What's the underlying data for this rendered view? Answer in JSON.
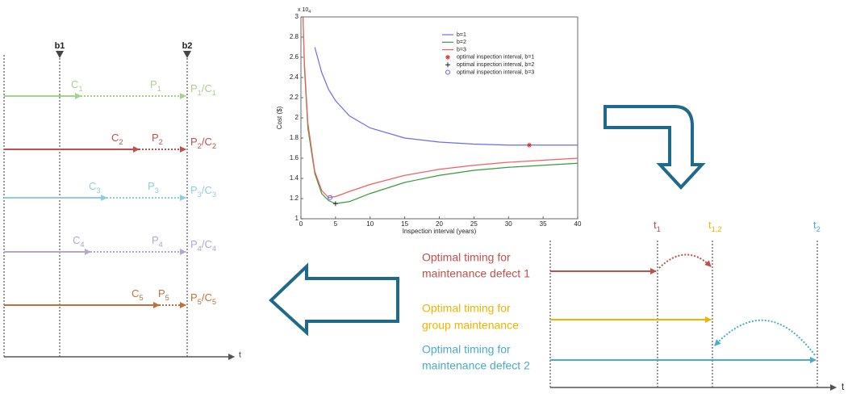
{
  "left": {
    "markers": [
      "b1",
      "b2"
    ],
    "rows": [
      {
        "color": "#a9d18e",
        "c": [
          "C",
          "1"
        ],
        "p": [
          "P",
          "1"
        ],
        "pc": [
          "P",
          "1",
          "/C",
          "1"
        ]
      },
      {
        "color": "#c0504d",
        "c": [
          "C",
          "2"
        ],
        "p": [
          "P",
          "2"
        ],
        "pc": [
          "P",
          "2",
          "/C",
          "2"
        ]
      },
      {
        "color": "#92cddc",
        "c": [
          "C",
          "3"
        ],
        "p": [
          "P",
          "3"
        ],
        "pc": [
          "P",
          "3",
          "/C",
          "3"
        ]
      },
      {
        "color": "#b4a7d6",
        "c": [
          "C",
          "4"
        ],
        "p": [
          "P",
          "4"
        ],
        "pc": [
          "P",
          "4",
          "/C",
          "4"
        ]
      },
      {
        "color": "#c0703a",
        "c": [
          "C",
          "5"
        ],
        "p": [
          "P",
          "5"
        ],
        "pc": [
          "P",
          "5",
          "/C",
          "5"
        ]
      }
    ],
    "axis_label": "t"
  },
  "chart_data": {
    "type": "line",
    "xlabel": "Inspection interval (years)",
    "ylabel": "Cost ($)",
    "scale": [
      "x 10",
      "4"
    ],
    "x": [
      0.3,
      0.5,
      1,
      2,
      3,
      4,
      5,
      7,
      10,
      15,
      20,
      25,
      30,
      35,
      40
    ],
    "xlim": [
      0,
      40
    ],
    "xticks": [
      0,
      5,
      10,
      15,
      20,
      25,
      30,
      35,
      40
    ],
    "ylim": [
      1,
      3
    ],
    "yticks": [
      1,
      1.2,
      1.4,
      1.6,
      1.8,
      2,
      2.2,
      2.4,
      2.6,
      2.8,
      3
    ],
    "series": [
      {
        "name": "b=1",
        "color": "#6b6bf0",
        "values": [
          null,
          null,
          null,
          2.7,
          2.45,
          2.28,
          2.17,
          2.02,
          1.9,
          1.8,
          1.76,
          1.74,
          1.73,
          1.73,
          1.73
        ]
      },
      {
        "name": "b=2",
        "color": "#3a9a3a",
        "values": [
          3.0,
          2.5,
          1.9,
          1.45,
          1.25,
          1.18,
          1.15,
          1.17,
          1.25,
          1.36,
          1.43,
          1.48,
          1.51,
          1.53,
          1.55
        ]
      },
      {
        "name": "b=3",
        "color": "#f06060",
        "values": [
          3.0,
          2.55,
          1.95,
          1.47,
          1.28,
          1.21,
          1.22,
          1.27,
          1.34,
          1.43,
          1.49,
          1.53,
          1.56,
          1.58,
          1.6
        ]
      }
    ],
    "points": [
      {
        "name": "optimal inspection interval, b=1",
        "color": "#e03030",
        "marker": "star",
        "x": 33,
        "y": 1.73
      },
      {
        "name": "optimal inspection interval, b=2",
        "color": "#202020",
        "marker": "plus",
        "x": 5,
        "y": 1.15
      },
      {
        "name": "optimal inspection interval, b=3",
        "color": "#6060e0",
        "marker": "circle",
        "x": 4.2,
        "y": 1.21
      }
    ]
  },
  "right": {
    "times": [
      {
        "label": [
          "t",
          "1"
        ],
        "color": "#c0504d"
      },
      {
        "label": [
          "t",
          "1,2"
        ],
        "color": "#f0b400"
      },
      {
        "label": [
          "t",
          "2"
        ],
        "color": "#4bacc6"
      }
    ],
    "rows": [
      {
        "lines": [
          "Optimal timing for",
          "maintenance defect 1"
        ],
        "color": "#c0504d"
      },
      {
        "lines": [
          "Optimal timing for",
          "group maintenance"
        ],
        "color": "#f0b400"
      },
      {
        "lines": [
          "Optimal timing for",
          "maintenance defect 2"
        ],
        "color": "#4bacc6"
      }
    ],
    "axis_label": "t"
  }
}
